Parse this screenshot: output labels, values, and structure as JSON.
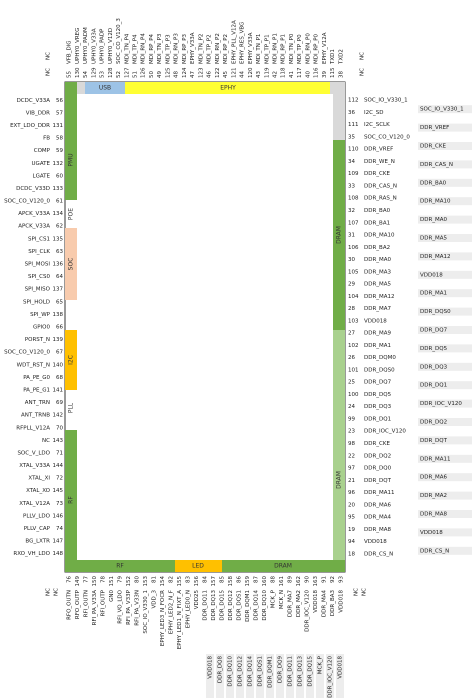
{
  "corner_label": "NC",
  "blocks": [
    "USB",
    "EPHY",
    "PMU",
    "POE",
    "SOC",
    "I2C",
    "PLL",
    "RF",
    "DRAM",
    "DRAM",
    "RF",
    "LED",
    "DRAM"
  ],
  "top_pins": [
    [
      55,
      "VFB_DIG"
    ],
    [
      130,
      "UPHY0_VREG"
    ],
    [
      54,
      "UPHY0_PADM"
    ],
    [
      129,
      "UPHY0_V33A"
    ],
    [
      53,
      "UPHY0_PADP"
    ],
    [
      128,
      "UPHY0_V12D"
    ],
    [
      52,
      "SOC_CO_V120_3"
    ],
    [
      127,
      "MDI_TN_P4"
    ],
    [
      51,
      "MDI_TP_P4"
    ],
    [
      126,
      "MDI_RN_P4"
    ],
    [
      50,
      "MDI_RP_P4"
    ],
    [
      49,
      "MDI_TN_P3"
    ],
    [
      125,
      "MDI_TP_P3"
    ],
    [
      48,
      "MDI_RN_P3"
    ],
    [
      124,
      "MDI_RP_P3"
    ],
    [
      47,
      "EPHY_V33A"
    ],
    [
      123,
      "MDI_TN_P2"
    ],
    [
      46,
      "MDI_TP_P2"
    ],
    [
      122,
      "MDI_RN_P2"
    ],
    [
      45,
      "MDI_RP_P2"
    ],
    [
      121,
      "EPHY_PLL_V12A"
    ],
    [
      44,
      "EPHY_RES_VBG"
    ],
    [
      120,
      "EPHY_V33A"
    ],
    [
      43,
      "MDI_TN_P1"
    ],
    [
      119,
      "MDI_TP_P1"
    ],
    [
      42,
      "MDI_RN_P1"
    ],
    [
      118,
      "MDI_RP_P1"
    ],
    [
      41,
      "MDI_TN_P0"
    ],
    [
      117,
      "MDI_TP_P0"
    ],
    [
      40,
      "MDI_RN_P0"
    ],
    [
      116,
      "MDI_RP_P0"
    ],
    [
      39,
      "EPHY_V12A"
    ],
    [
      115,
      "TXD1"
    ],
    [
      38,
      "TXD2"
    ]
  ],
  "left_pins": [
    [
      56,
      "DCDC_V33A"
    ],
    [
      57,
      "VIB_DDR"
    ],
    [
      131,
      "EXT_LDO_DDR"
    ],
    [
      58,
      "FB"
    ],
    [
      59,
      "COMP"
    ],
    [
      132,
      "UGATE"
    ],
    [
      60,
      "LGATE"
    ],
    [
      133,
      "DCDC_V33D"
    ],
    [
      61,
      "SOC_CO_V120_0"
    ],
    [
      134,
      "APCK_V33A"
    ],
    [
      62,
      "APCK_V33A"
    ],
    [
      135,
      "SPI_CS1"
    ],
    [
      63,
      "SPI_CLK"
    ],
    [
      136,
      "SPI_MOSI"
    ],
    [
      64,
      "SPI_CS0"
    ],
    [
      137,
      "SPI_MISO"
    ],
    [
      65,
      "SPI_HOLD"
    ],
    [
      138,
      "SPI_WP"
    ],
    [
      66,
      "GPIO0"
    ],
    [
      139,
      "PORST_N"
    ],
    [
      67,
      "SOC_CO_V120_0"
    ],
    [
      140,
      "WDT_RST_N"
    ],
    [
      68,
      "PA_PE_G0"
    ],
    [
      141,
      "PA_PE_G1"
    ],
    [
      69,
      "ANT_TRN"
    ],
    [
      142,
      "ANT_TRNB"
    ],
    [
      70,
      "RFPLL_V12A"
    ],
    [
      143,
      "NC"
    ],
    [
      71,
      "SOC_V_LDO"
    ],
    [
      144,
      "XTAL_V33A"
    ],
    [
      72,
      "XTAL_XI"
    ],
    [
      145,
      "XTAL_XO"
    ],
    [
      73,
      "XTAL_V12A"
    ],
    [
      146,
      "PLLV_LDO"
    ],
    [
      74,
      "PLLV_CAP"
    ],
    [
      147,
      "BG_LXTR"
    ],
    [
      148,
      "RXO_VH_LDO"
    ]
  ],
  "right_pins": [
    [
      112,
      "SOC_IO_V330_1"
    ],
    [
      36,
      "I2C_SD"
    ],
    [
      111,
      "I2C_SCLK"
    ],
    [
      35,
      "SOC_CO_V120_0"
    ],
    [
      110,
      "DDR_VREF"
    ],
    [
      34,
      "DDR_WE_N"
    ],
    [
      109,
      "DDR_CKE"
    ],
    [
      33,
      "DDR_CAS_N"
    ],
    [
      108,
      "DDR_RAS_N"
    ],
    [
      32,
      "DDR_BA0"
    ],
    [
      107,
      "DDR_BA1"
    ],
    [
      31,
      "DDR_MA10"
    ],
    [
      106,
      "DDR_BA2"
    ],
    [
      30,
      "DDR_MA0"
    ],
    [
      105,
      "DDR_MA3"
    ],
    [
      29,
      "DDR_MA5"
    ],
    [
      104,
      "DDR_MA12"
    ],
    [
      28,
      "DDR_MA7"
    ],
    [
      103,
      "VDD018"
    ],
    [
      27,
      "DDR_MA9"
    ],
    [
      102,
      "DDR_MA1"
    ],
    [
      26,
      "DDR_DQM0"
    ],
    [
      101,
      "DDR_DQS0"
    ],
    [
      25,
      "DDR_DQ7"
    ],
    [
      100,
      "DDR_DQ5"
    ],
    [
      24,
      "DDR_DQ3"
    ],
    [
      99,
      "DDR_DQ1"
    ],
    [
      23,
      "DDR_IOC_V120"
    ],
    [
      98,
      "DDR_CKE"
    ],
    [
      22,
      "DDR_DQ2"
    ],
    [
      97,
      "DDR_DQ0"
    ],
    [
      21,
      "DDR_DQT"
    ],
    [
      96,
      "DDR_MA11"
    ],
    [
      20,
      "DDR_MA6"
    ],
    [
      95,
      "DDR_MA4"
    ],
    [
      19,
      "DDR_MA8"
    ],
    [
      94,
      "VDD018"
    ],
    [
      18,
      "DDR_CS_N"
    ]
  ],
  "right_extra": [
    "SOC_IO_V330_1",
    "DDR_VREF",
    "DDR_CKE",
    "DDR_CAS_N",
    "DDR_BA0",
    "DDR_MA10",
    "DDR_MA0",
    "DDR_MA5",
    "DDR_MA12",
    "VDD018",
    "DDR_MA1",
    "DDR_DQS0",
    "DDR_DQ7",
    "DDR_DQ5",
    "DDR_DQ3",
    "DDR_DQ1",
    "DDR_IOC_V120",
    "DDR_DQ2",
    "DDR_DQT",
    "DDR_MA11",
    "DDR_MA6",
    "DDR_MA2",
    "DDR_MA8",
    "VDD018",
    "DDR_CS_N"
  ],
  "bottom_pins": [
    [
      76,
      "RFO_OUTN"
    ],
    [
      149,
      "RFO_OUTP"
    ],
    [
      77,
      "RFI_OUTN"
    ],
    [
      150,
      "RFI_PA_V33A"
    ],
    [
      78,
      "RFI_OUTP"
    ],
    [
      151,
      "GN0"
    ],
    [
      79,
      "RFI_VO_LDO"
    ],
    [
      152,
      "RFI_PA_V33P"
    ],
    [
      80,
      "RFI_PA_V33N"
    ],
    [
      153,
      "SOC_IO_V330_1"
    ],
    [
      81,
      "VDD_3"
    ],
    [
      154,
      "EPHY_LED3_N_FOCR"
    ],
    [
      82,
      "EPHY_LED2_N_F"
    ],
    [
      155,
      "EPHY_LED1_N_FIXT_A"
    ],
    [
      83,
      "EPHY_LED0_N"
    ],
    [
      156,
      "VDD25"
    ],
    [
      84,
      "DDR_DQ11"
    ],
    [
      157,
      "DDR_DQ13"
    ],
    [
      85,
      "DDR_DQ15"
    ],
    [
      158,
      "DDR_DQ12"
    ],
    [
      86,
      "DDR_DQS1"
    ],
    [
      159,
      "DDR_DQM1"
    ],
    [
      87,
      "DDR_DQ14"
    ],
    [
      160,
      "DDR_DQ10"
    ],
    [
      88,
      "MCK_P"
    ],
    [
      161,
      "MCK_N"
    ],
    [
      89,
      "DDR_MA7"
    ],
    [
      162,
      "DDR_MA2"
    ],
    [
      90,
      "DDR_IOC_V120"
    ],
    [
      163,
      "VDD018"
    ],
    [
      91,
      "DDR_MA4"
    ],
    [
      92,
      "DDR_BA3"
    ],
    [
      93,
      "VDD018"
    ]
  ],
  "bottom_extra": [
    "VDD018",
    "DDR_DQ8",
    "DDR_DQ10",
    "DDR_DQ12",
    "DDR_DQ14",
    "DDR_DQS1",
    "DDR_DQM1",
    "DDR_DQ9",
    "DDR_DQ11",
    "DDR_DQ13",
    "DDR_DQ15",
    "MCK_P",
    "DDR_IOC_V120",
    "VDD018"
  ]
}
